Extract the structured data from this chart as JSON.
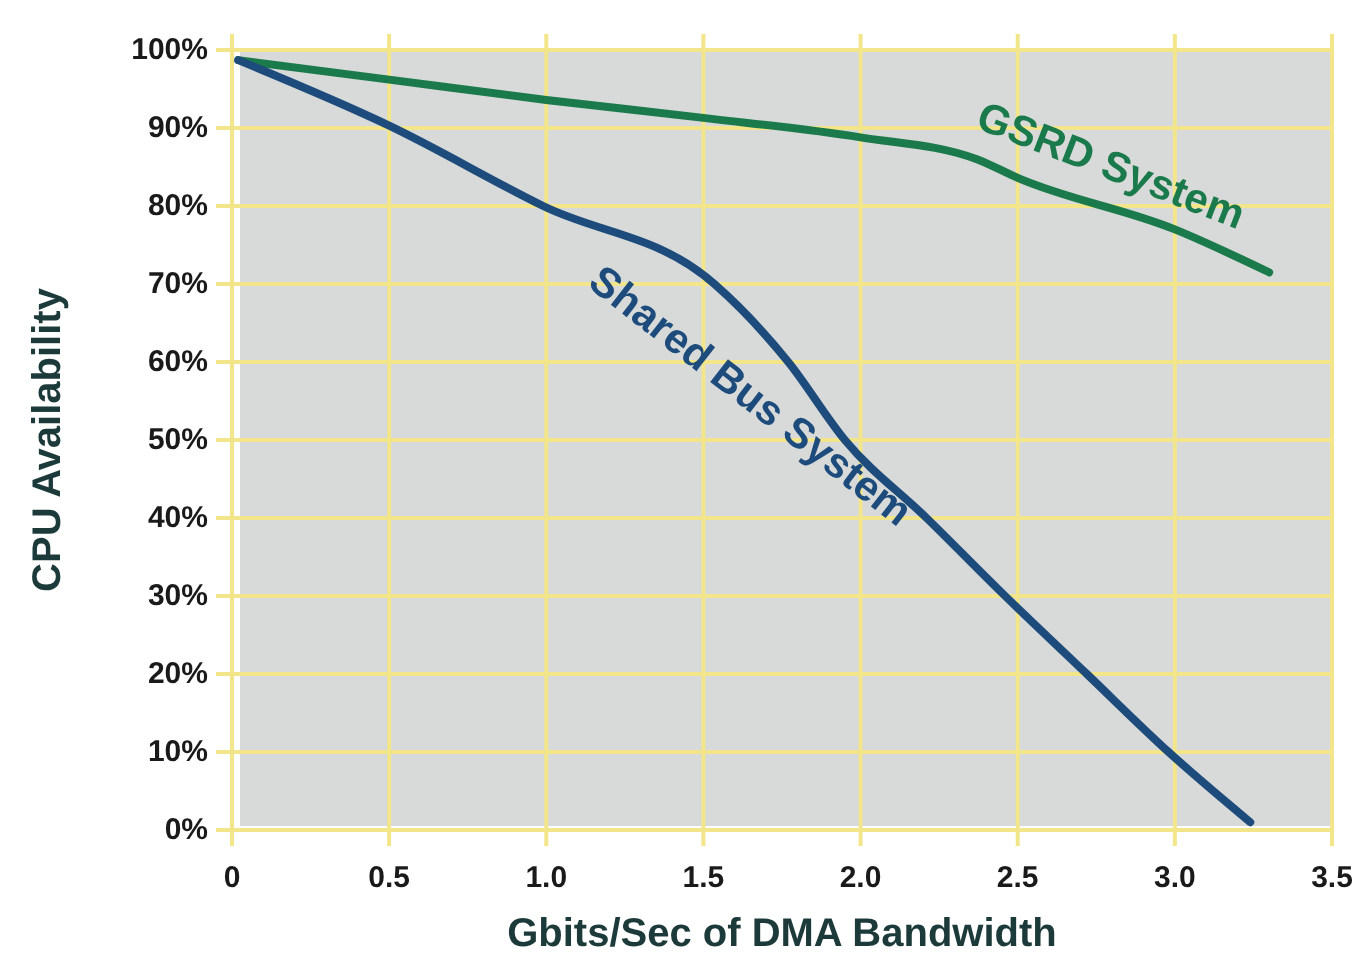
{
  "chart_data": {
    "type": "line",
    "xlabel": "Gbits/Sec of DMA Bandwidth",
    "ylabel": "CPU Availability",
    "xlim": [
      0,
      3.5
    ],
    "ylim": [
      0,
      100
    ],
    "xticks": [
      0,
      0.5,
      {
        "value": 1,
        "label": "1.0"
      },
      1.5,
      {
        "value": 2,
        "label": "2.0"
      },
      2.5,
      {
        "value": 3,
        "label": "3.0"
      },
      3.5
    ],
    "yticks": [
      {
        "value": 0,
        "label": "0%"
      },
      {
        "value": 10,
        "label": "10%"
      },
      {
        "value": 20,
        "label": "20%"
      },
      {
        "value": 30,
        "label": "30%"
      },
      {
        "value": 40,
        "label": "40%"
      },
      {
        "value": 50,
        "label": "50%"
      },
      {
        "value": 60,
        "label": "60%"
      },
      {
        "value": 70,
        "label": "70%"
      },
      {
        "value": 80,
        "label": "80%"
      },
      {
        "value": 90,
        "label": "90%"
      },
      {
        "value": 100,
        "label": "100%"
      }
    ],
    "grid": true,
    "marker": "none",
    "line_style": "solid",
    "series": [
      {
        "name": "GSRD System",
        "color": "#1b7a4b",
        "x": [
          0.02,
          0.5,
          1.0,
          1.5,
          2.0,
          2.37,
          2.5,
          3.0,
          3.3
        ],
        "values": [
          98.7,
          96.2,
          93.6,
          91.3,
          88.8,
          86,
          83.6,
          77,
          71.5
        ]
      },
      {
        "name": "Shared Bus System",
        "color": "#1d4c7c",
        "x": [
          0.02,
          0.5,
          0.99,
          1.535,
          1.77,
          1.95,
          2.21,
          2.46,
          2.72,
          2.98,
          3.24
        ],
        "values": [
          98.7,
          90.3,
          80,
          70,
          60,
          50,
          40,
          30,
          20,
          10,
          1
        ]
      }
    ]
  }
}
